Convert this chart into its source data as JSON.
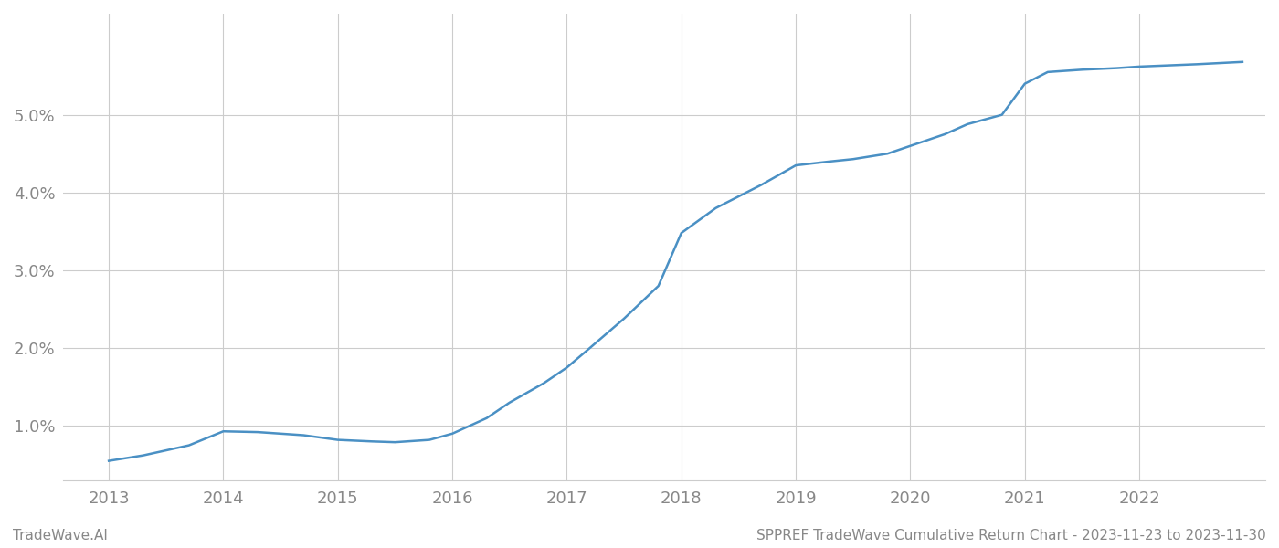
{
  "x_values": [
    2013.0,
    2013.3,
    2013.7,
    2014.0,
    2014.3,
    2014.7,
    2015.0,
    2015.3,
    2015.5,
    2015.8,
    2016.0,
    2016.3,
    2016.5,
    2016.8,
    2017.0,
    2017.2,
    2017.5,
    2017.8,
    2018.0,
    2018.3,
    2018.7,
    2019.0,
    2019.3,
    2019.5,
    2019.8,
    2020.0,
    2020.3,
    2020.5,
    2020.8,
    2021.0,
    2021.2,
    2021.5,
    2021.8,
    2022.0,
    2022.5,
    2022.9
  ],
  "y_values": [
    0.0055,
    0.0062,
    0.0075,
    0.0093,
    0.0092,
    0.0088,
    0.0082,
    0.008,
    0.0079,
    0.0082,
    0.009,
    0.011,
    0.013,
    0.0155,
    0.0175,
    0.02,
    0.0238,
    0.028,
    0.0348,
    0.038,
    0.041,
    0.0435,
    0.044,
    0.0443,
    0.045,
    0.046,
    0.0475,
    0.0488,
    0.05,
    0.054,
    0.0555,
    0.0558,
    0.056,
    0.0562,
    0.0565,
    0.0568
  ],
  "line_color": "#4a90c4",
  "line_width": 1.8,
  "background_color": "#ffffff",
  "grid_color": "#cccccc",
  "tick_label_color": "#888888",
  "xlabel_ticks": [
    2013,
    2014,
    2015,
    2016,
    2017,
    2018,
    2019,
    2020,
    2021,
    2022
  ],
  "ytick_values": [
    0.01,
    0.02,
    0.03,
    0.04,
    0.05
  ],
  "ytick_labels": [
    "1.0%",
    "2.0%",
    "3.0%",
    "4.0%",
    "5.0%"
  ],
  "ylim": [
    0.003,
    0.063
  ],
  "xlim": [
    2012.6,
    2023.1
  ],
  "footer_left": "TradeWave.AI",
  "footer_right": "SPPREF TradeWave Cumulative Return Chart - 2023-11-23 to 2023-11-30",
  "footer_fontsize": 11,
  "tick_fontsize": 13
}
